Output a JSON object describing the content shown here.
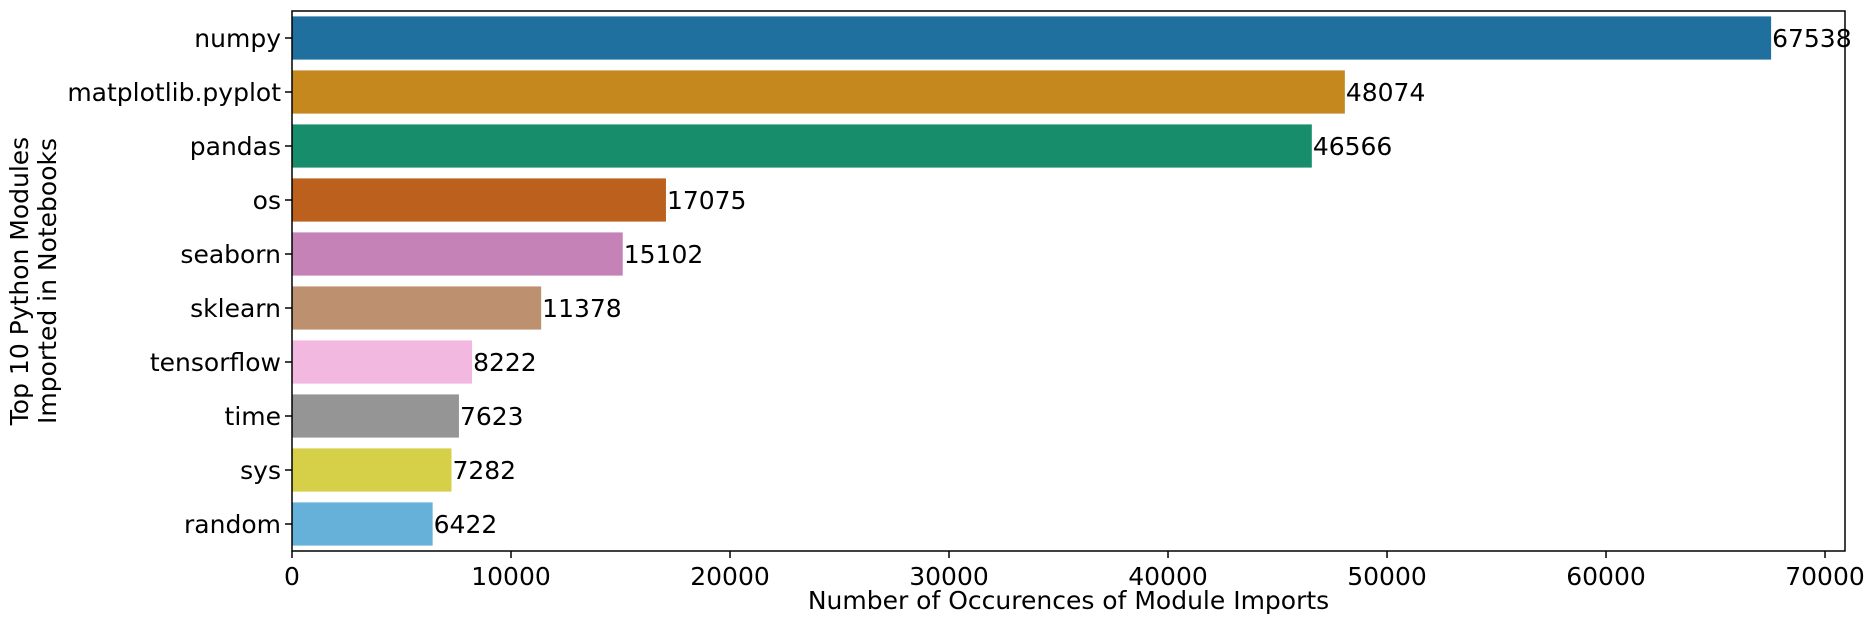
{
  "chart_data": {
    "type": "bar",
    "orientation": "horizontal",
    "categories": [
      "numpy",
      "matplotlib.pyplot",
      "pandas",
      "os",
      "seaborn",
      "sklearn",
      "tensorflow",
      "time",
      "sys",
      "random"
    ],
    "values": [
      67538,
      48074,
      46566,
      17075,
      15102,
      11378,
      8222,
      7623,
      7282,
      6422
    ],
    "data_labels": [
      "67538",
      "48074",
      "46566",
      "17075",
      "15102",
      "11378",
      "8222",
      "7623",
      "7282",
      "6422"
    ],
    "colors": [
      "#1f6f9f",
      "#c4881f",
      "#178d6b",
      "#bb601d",
      "#c482b6",
      "#bd9170",
      "#f2b8e0",
      "#959595",
      "#d6cf48",
      "#66b1d9"
    ],
    "xlabel": "Number of Occurences of Module Imports",
    "ylabel_lines": [
      "Top 10 Python Modules",
      "Imported in Notebooks"
    ],
    "xticks": [
      0,
      10000,
      20000,
      30000,
      40000,
      50000,
      60000,
      70000
    ],
    "xtick_labels": [
      "0",
      "10000",
      "20000",
      "30000",
      "40000",
      "50000",
      "60000",
      "70000"
    ],
    "xlim": [
      0,
      70912
    ],
    "grid": false,
    "legend": "none"
  }
}
